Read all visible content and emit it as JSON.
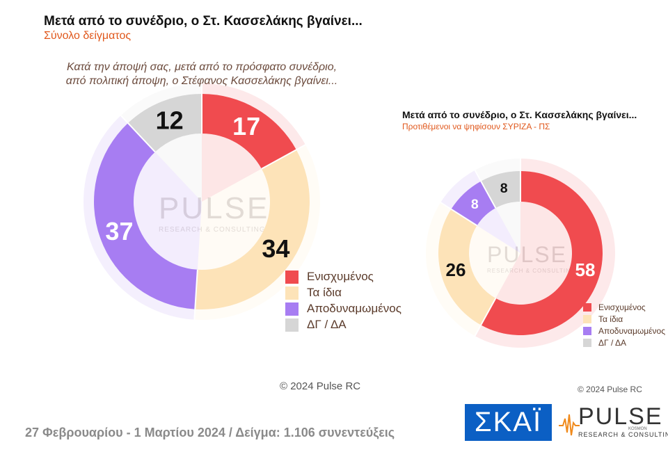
{
  "chart_data": [
    {
      "type": "pie",
      "title": "Μετά από το συνέδριο, ο Στ. Κασσελάκης βγαίνει...",
      "subtitle": "Σύνολο δείγματος",
      "question": [
        "Κατά την άποψή σας, μετά από το πρόσφατο συνέδριο,",
        "από πολιτική άποψη, ο Στέφανος Κασσελάκης βγαίνει..."
      ],
      "categories": [
        "Ενισχυμένος",
        "Τα ίδια",
        "Αποδυναμωμένος",
        "ΔΓ / ΔΑ"
      ],
      "values": [
        17,
        34,
        37,
        12
      ],
      "data_labels": [
        "17",
        "34",
        "37",
        "12"
      ],
      "legend_position": "bottom-right"
    },
    {
      "type": "pie",
      "title": "Μετά από το συνέδριο, ο Στ. Κασσελάκης βγαίνει...",
      "subtitle": "Προτιθέμενοι να ψηφίσουν ΣΥΡΙΖΑ - ΠΣ",
      "categories": [
        "Ενισχυμένος",
        "Τα ίδια",
        "Αποδυναμωμένος",
        "ΔΓ / ΔΑ"
      ],
      "values": [
        58,
        26,
        8,
        8
      ],
      "data_labels": [
        "58",
        "26",
        "8",
        "8"
      ],
      "legend_position": "bottom-right"
    }
  ],
  "colors": {
    "Ενισχυμένος": "#f04b4f",
    "Τα ίδια": "#fde3b8",
    "Αποδυναμωμένος": "#a77df2",
    "ΔΓ / ΔΑ": "#d6d6d6",
    "accent_subtitle": "#e0571b",
    "skai_blue": "#0b5fc4",
    "pulse_orange": "#f08a1c"
  },
  "watermark": {
    "name": "PULSE",
    "sub": "RESEARCH & CONSULTING"
  },
  "copyright_large": "© 2024 Pulse RC",
  "copyright_small": "© 2024 Pulse RC",
  "footer": "27 Φεβρουαρίου - 1 Μαρτίου 2024  /  Δείγμα:  1.106 συνεντεύξεις",
  "logos": {
    "skai": "ΣΚΑΪ",
    "pulse": "PULSE",
    "pulse_sub": "RESEARCH & CONSULTING",
    "pulse_kosmon": "KOSMON"
  }
}
